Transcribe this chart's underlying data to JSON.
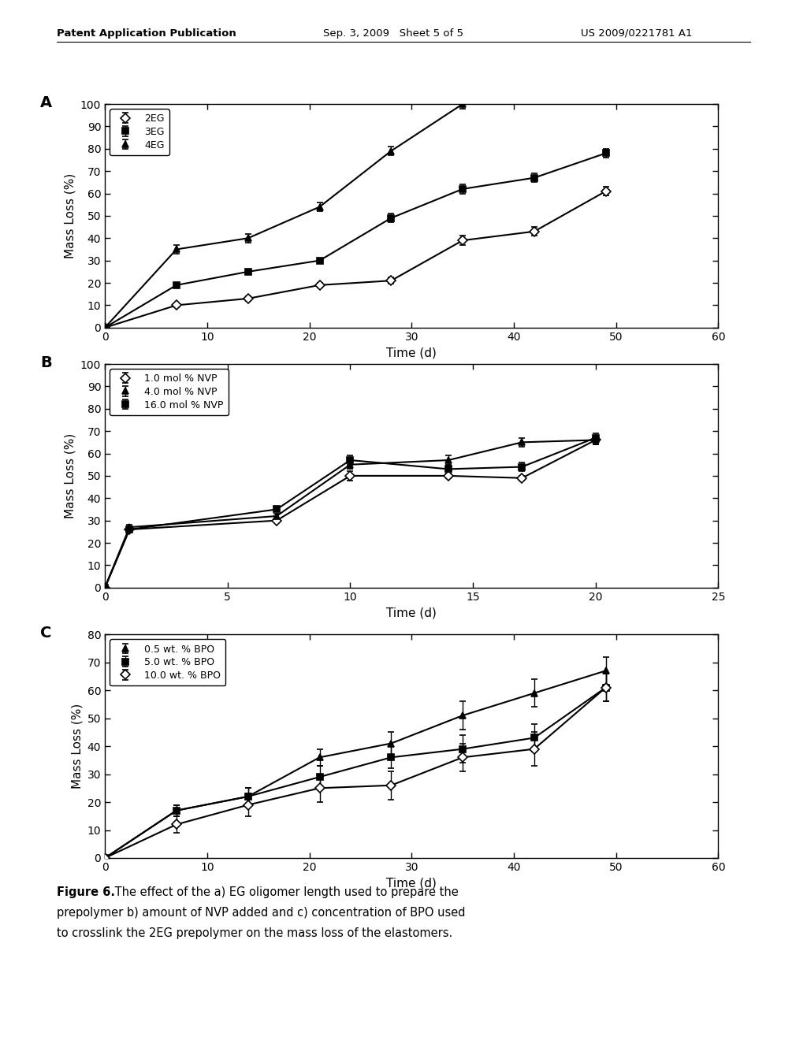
{
  "header_left": "Patent Application Publication",
  "header_mid": "Sep. 3, 2009   Sheet 5 of 5",
  "header_right": "US 2009/0221781 A1",
  "caption_bold": "Figure 6.",
  "caption_rest": " The effect of the a) EG oligomer length used to prepare the prepolymer b) amount of NVP added and c) concentration of BPO used to crosslink the 2EG prepolymer on the mass loss of the elastomers.",
  "A": {
    "label": "A",
    "xlabel": "Time (d)",
    "ylabel": "Mass Loss (%)",
    "xlim": [
      0,
      60
    ],
    "ylim": [
      0,
      100
    ],
    "xticks": [
      0,
      10,
      20,
      30,
      40,
      50,
      60
    ],
    "yticks": [
      0,
      10,
      20,
      30,
      40,
      50,
      60,
      70,
      80,
      90,
      100
    ],
    "series": [
      {
        "label": "2EG",
        "marker": "D",
        "filled": false,
        "x": [
          0,
          7,
          14,
          21,
          28,
          35,
          42,
          49
        ],
        "y": [
          0,
          10,
          13,
          19,
          21,
          39,
          43,
          61
        ],
        "yerr": [
          0,
          1,
          1,
          1,
          1.5,
          2,
          2,
          2
        ]
      },
      {
        "label": "3EG",
        "marker": "s",
        "filled": true,
        "x": [
          0,
          7,
          14,
          21,
          28,
          35,
          42,
          49
        ],
        "y": [
          0,
          19,
          25,
          30,
          49,
          62,
          67,
          78
        ],
        "yerr": [
          0,
          1,
          1,
          1,
          2,
          2,
          2,
          2
        ]
      },
      {
        "label": "4EG",
        "marker": "^",
        "filled": true,
        "x": [
          0,
          7,
          14,
          21,
          28,
          35
        ],
        "y": [
          0,
          35,
          40,
          54,
          79,
          100
        ],
        "yerr": [
          0,
          2,
          2,
          2,
          2,
          2
        ]
      }
    ]
  },
  "B": {
    "label": "B",
    "xlabel": "Time (d)",
    "ylabel": "Mass Loss (%)",
    "xlim": [
      0,
      25
    ],
    "ylim": [
      0,
      100
    ],
    "xticks": [
      0,
      5,
      10,
      15,
      20,
      25
    ],
    "yticks": [
      0,
      10,
      20,
      30,
      40,
      50,
      60,
      70,
      80,
      90,
      100
    ],
    "series": [
      {
        "label": "1.0 mol % NVP",
        "marker": "D",
        "filled": false,
        "x": [
          0,
          1,
          7,
          10,
          14,
          17,
          20
        ],
        "y": [
          0,
          26,
          30,
          50,
          50,
          49,
          66
        ],
        "yerr": [
          0,
          1,
          1,
          2,
          1,
          1,
          2
        ]
      },
      {
        "label": "4.0 mol % NVP",
        "marker": "^",
        "filled": true,
        "x": [
          0,
          1,
          7,
          10,
          14,
          17,
          20
        ],
        "y": [
          0,
          27,
          32,
          55,
          57,
          65,
          66
        ],
        "yerr": [
          0,
          1,
          1,
          2,
          2,
          2,
          2
        ]
      },
      {
        "label": "16.0 mol % NVP",
        "marker": "s",
        "filled": true,
        "x": [
          0,
          1,
          7,
          10,
          14,
          17,
          20
        ],
        "y": [
          0,
          26,
          35,
          57,
          53,
          54,
          67
        ],
        "yerr": [
          0,
          1,
          1,
          2,
          2,
          2,
          2
        ]
      }
    ]
  },
  "C": {
    "label": "C",
    "xlabel": "Time (d)",
    "ylabel": "Mass Loss (%)",
    "xlim": [
      0,
      60
    ],
    "ylim": [
      0,
      80
    ],
    "xticks": [
      0,
      10,
      20,
      30,
      40,
      50,
      60
    ],
    "yticks": [
      0,
      10,
      20,
      30,
      40,
      50,
      60,
      70,
      80
    ],
    "series": [
      {
        "label": "0.5 wt. % BPO",
        "marker": "^",
        "filled": true,
        "x": [
          0,
          7,
          14,
          21,
          28,
          35,
          42,
          49
        ],
        "y": [
          0,
          17,
          22,
          36,
          41,
          51,
          59,
          67
        ],
        "yerr": [
          0,
          2,
          3,
          3,
          4,
          5,
          5,
          5
        ]
      },
      {
        "label": "5.0 wt. % BPO",
        "marker": "s",
        "filled": true,
        "x": [
          0,
          7,
          14,
          21,
          28,
          35,
          42,
          49
        ],
        "y": [
          0,
          17,
          22,
          29,
          36,
          39,
          43,
          61
        ],
        "yerr": [
          0,
          2,
          3,
          4,
          4,
          5,
          5,
          5
        ]
      },
      {
        "label": "10.0 wt. % BPO",
        "marker": "D",
        "filled": false,
        "x": [
          0,
          7,
          14,
          21,
          28,
          35,
          42,
          49
        ],
        "y": [
          0,
          12,
          19,
          25,
          26,
          36,
          39,
          61
        ],
        "yerr": [
          0,
          3,
          4,
          5,
          5,
          5,
          6,
          5
        ]
      }
    ]
  }
}
